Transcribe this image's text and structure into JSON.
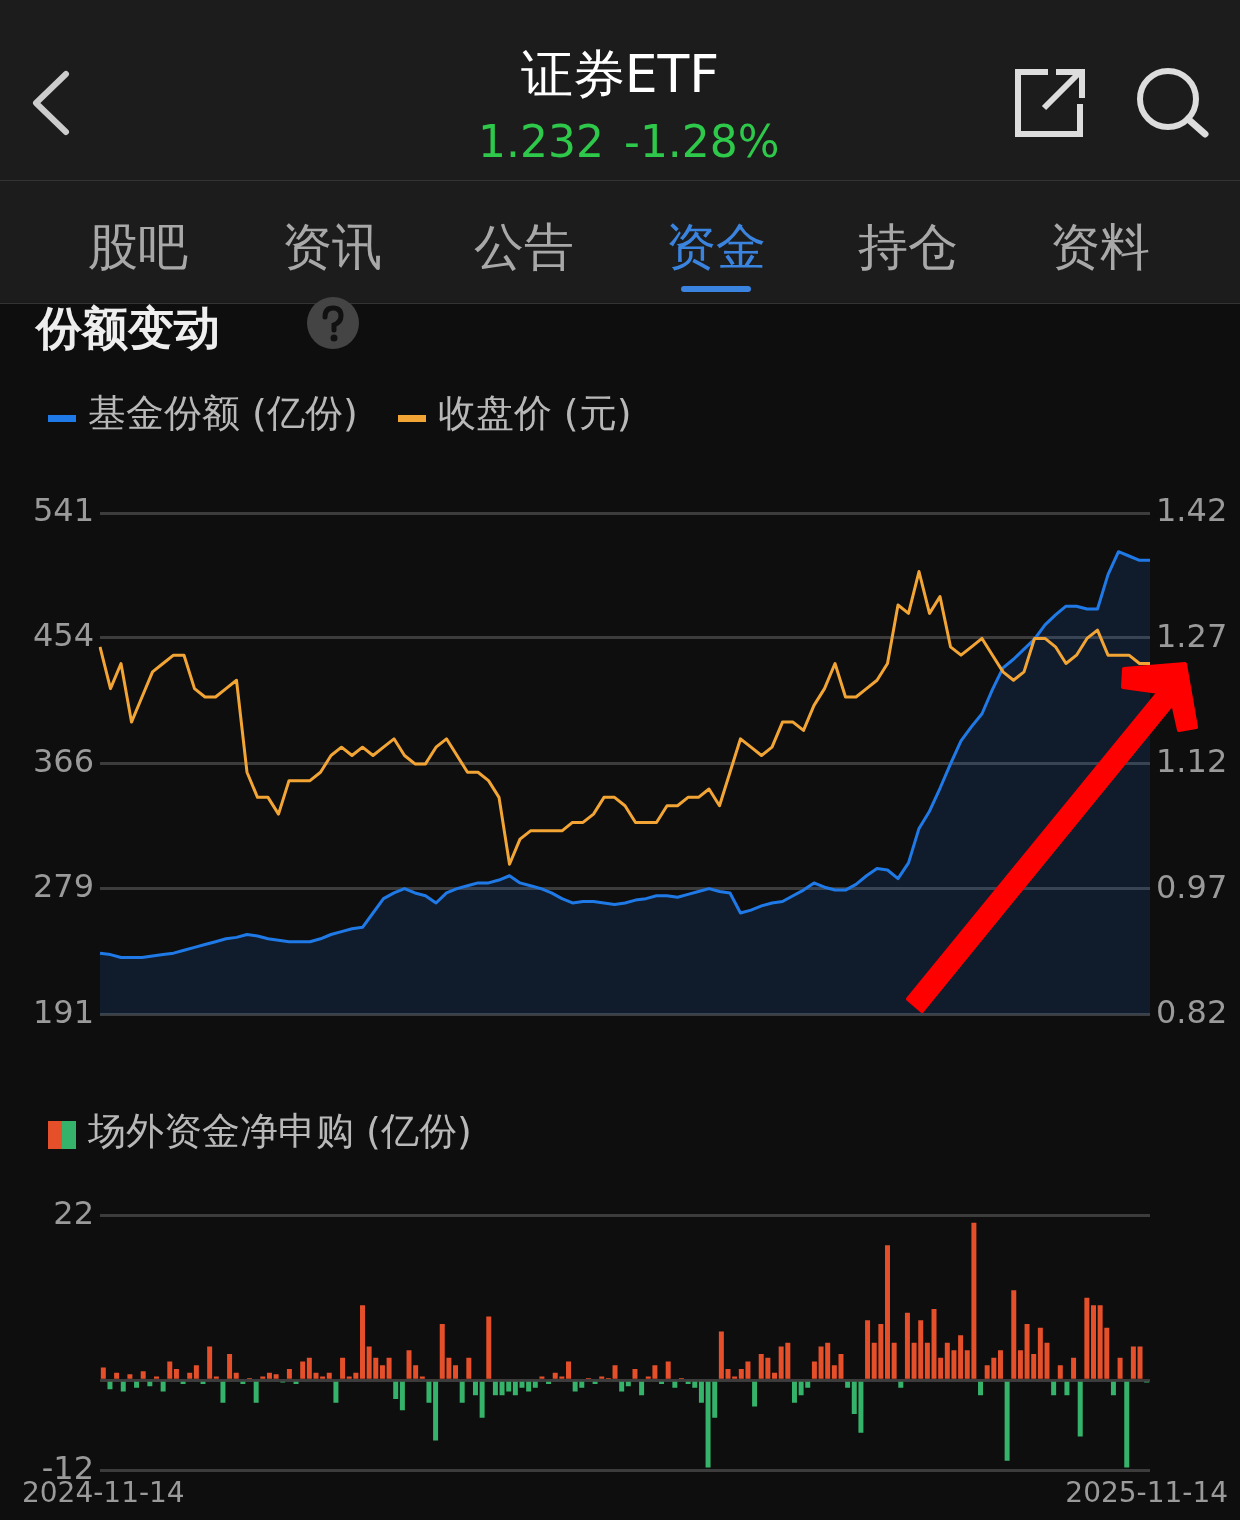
{
  "chart_data": [
    {
      "type": "line",
      "title": "份额变动",
      "annotations": [
        "证券ETF",
        "1.232",
        "-1.28%",
        "股吧",
        "资讯",
        "公告",
        "资金",
        "持仓",
        "资料"
      ],
      "categories": [
        null,
        null,
        null,
        null,
        null,
        null,
        null,
        null,
        null,
        null,
        null,
        null,
        null,
        null,
        null,
        null,
        null,
        null,
        null,
        null,
        null,
        null,
        null,
        null,
        null,
        null,
        null,
        null,
        null,
        null,
        null,
        null,
        null,
        null,
        null,
        null,
        null,
        null,
        null,
        null,
        null,
        null,
        null,
        null,
        null,
        null,
        null,
        null,
        null,
        null,
        null,
        null,
        null,
        null,
        null,
        null,
        null,
        null,
        null,
        null,
        null,
        null,
        null,
        null,
        null,
        null,
        null,
        null,
        null,
        null,
        null,
        null,
        null,
        null,
        null,
        null,
        null,
        null,
        null,
        null,
        null,
        null,
        null,
        null,
        null,
        null,
        null,
        null,
        null,
        null,
        null,
        null,
        null,
        null,
        null,
        null,
        null,
        null,
        null,
        null,
        null
      ],
      "series": [
        {
          "name": "基金份额 (亿份)",
          "type": "area",
          "color": "#1f7ae8",
          "values": [
            234,
            233,
            231,
            231,
            231,
            232,
            233,
            234,
            236,
            238,
            240,
            242,
            244,
            245,
            247,
            246,
            244,
            243,
            242,
            242,
            242,
            244,
            247,
            249,
            251,
            252,
            262,
            272,
            276,
            279,
            276,
            274,
            269,
            276,
            279,
            281,
            283,
            283,
            285,
            288,
            283,
            281,
            279,
            276,
            272,
            269,
            270,
            270,
            269,
            268,
            269,
            271,
            272,
            274,
            274,
            273,
            275,
            277,
            279,
            277,
            276,
            262,
            264,
            267,
            269,
            270,
            274,
            278,
            283,
            280,
            278,
            278,
            282,
            288,
            293,
            292,
            286,
            297,
            321,
            333,
            349,
            366,
            382,
            392,
            401,
            418,
            433,
            439,
            446,
            453,
            463,
            470,
            476,
            476,
            474,
            474,
            498,
            514,
            511,
            508,
            508
          ]
        },
        {
          "name": "收盘价 (元)",
          "type": "line",
          "axis": "y2",
          "color": "#f2a535",
          "values": [
            1.26,
            1.21,
            1.24,
            1.17,
            1.2,
            1.23,
            1.24,
            1.25,
            1.25,
            1.21,
            1.2,
            1.2,
            1.21,
            1.22,
            1.11,
            1.08,
            1.08,
            1.06,
            1.1,
            1.1,
            1.1,
            1.11,
            1.13,
            1.14,
            1.13,
            1.14,
            1.13,
            1.14,
            1.15,
            1.13,
            1.12,
            1.12,
            1.14,
            1.15,
            1.13,
            1.11,
            1.11,
            1.1,
            1.08,
            1.0,
            1.03,
            1.04,
            1.04,
            1.04,
            1.04,
            1.05,
            1.05,
            1.06,
            1.08,
            1.08,
            1.07,
            1.05,
            1.05,
            1.05,
            1.07,
            1.07,
            1.08,
            1.08,
            1.09,
            1.07,
            1.11,
            1.15,
            1.14,
            1.13,
            1.14,
            1.17,
            1.17,
            1.16,
            1.19,
            1.21,
            1.24,
            1.2,
            1.2,
            1.21,
            1.22,
            1.24,
            1.31,
            1.3,
            1.35,
            1.3,
            1.32,
            1.26,
            1.25,
            1.26,
            1.27,
            1.25,
            1.23,
            1.22,
            1.23,
            1.27,
            1.27,
            1.26,
            1.24,
            1.25,
            1.27,
            1.28,
            1.25,
            1.25,
            1.25,
            1.24,
            1.24
          ]
        }
      ],
      "ylim": [
        191,
        541
      ],
      "yticks": [
        191,
        279,
        366,
        454,
        541
      ],
      "y2lim": [
        0.82,
        1.42
      ],
      "y2ticks": [
        0.82,
        0.97,
        1.12,
        1.27,
        1.42
      ],
      "grid": "y",
      "legend": "top left",
      "tick_labels": "y"
    },
    {
      "type": "bar",
      "categories": [
        "2024-11-14",
        null,
        null,
        null,
        null,
        null,
        null,
        null,
        null,
        null,
        null,
        null,
        null,
        null,
        null,
        null,
        null,
        null,
        null,
        null,
        null,
        null,
        null,
        null,
        null,
        null,
        null,
        null,
        null,
        null,
        null,
        null,
        null,
        null,
        null,
        null,
        null,
        null,
        null,
        null,
        null,
        null,
        null,
        null,
        null,
        null,
        null,
        null,
        null,
        null,
        null,
        null,
        null,
        null,
        null,
        null,
        null,
        null,
        null,
        null,
        null,
        null,
        null,
        null,
        null,
        null,
        null,
        null,
        null,
        null,
        null,
        null,
        null,
        null,
        null,
        null,
        null,
        null,
        null,
        null,
        null,
        null,
        null,
        null,
        null,
        null,
        null,
        null,
        null,
        null,
        null,
        null,
        null,
        null,
        null,
        null,
        null,
        null,
        null,
        null,
        null,
        null,
        null,
        null,
        null,
        null,
        null,
        null,
        null,
        null,
        null,
        null,
        null,
        null,
        null,
        null,
        null,
        null,
        null,
        null,
        null,
        null,
        null,
        null,
        null,
        null,
        null,
        null,
        null,
        null,
        null,
        null,
        null,
        null,
        null,
        null,
        null,
        null,
        null,
        null,
        null,
        null,
        null,
        null,
        null,
        null,
        null,
        null,
        null,
        null,
        null,
        null,
        null,
        null,
        null,
        null,
        null,
        "2025-11-14"
      ],
      "series": [
        {
          "name": "场外资金净申购 (亿份)",
          "values": [
            1.7,
            -1.2,
            1,
            -1.5,
            0.8,
            -1,
            1.2,
            -0.8,
            0.5,
            -1.5,
            2.5,
            1.5,
            -0.5,
            1,
            2,
            -0.5,
            4.5,
            0.5,
            -3,
            3.5,
            1,
            -0.5,
            0.3,
            -3,
            0.5,
            1,
            0.8,
            -0.3,
            1.5,
            -0.5,
            2.5,
            3,
            1,
            0.5,
            1,
            -3,
            3,
            0.5,
            1,
            10,
            4.5,
            3,
            2,
            3,
            -2.5,
            -4,
            4,
            2,
            0.5,
            -3,
            -8,
            7.5,
            3,
            2,
            -3,
            3,
            -2,
            -5,
            8.5,
            -2,
            -2,
            -1.5,
            -2,
            -1,
            -1.5,
            -1,
            0.5,
            -0.5,
            1,
            0.5,
            2.5,
            -1.5,
            -1,
            0.3,
            -0.5,
            0.5,
            0.3,
            2,
            -1.5,
            -0.8,
            1.5,
            -2,
            0.5,
            2,
            -0.5,
            2.5,
            -1,
            0.3,
            -0.5,
            -1,
            -3,
            -11.6,
            -5,
            6.5,
            1.5,
            0.5,
            1.5,
            2.5,
            -3.5,
            3.5,
            3,
            1,
            4.5,
            5,
            -3,
            -2,
            -1,
            2.5,
            4.5,
            5,
            2,
            3.5,
            -1,
            -4.5,
            -7,
            8,
            5,
            7.5,
            18,
            5,
            -1,
            9,
            5,
            8,
            5,
            9.5,
            3,
            5,
            4,
            6,
            4,
            21,
            -2,
            2,
            3,
            4,
            -10.7,
            12,
            4,
            7.5,
            3.5,
            7,
            5,
            -2,
            2,
            -2,
            3,
            -7.5,
            11,
            10,
            10,
            7,
            -2,
            3,
            -11.6,
            4.5,
            4.5,
            -0.3
          ],
          "colors": [
            "#e5502b",
            "#36b36b",
            "#e5502b",
            "#36b36b",
            "#e5502b",
            "#36b36b",
            "#e5502b",
            "#36b36b",
            "#e5502b",
            "#36b36b",
            "#e5502b",
            "#e5502b",
            "#36b36b",
            "#e5502b",
            "#e5502b",
            "#36b36b",
            "#e5502b",
            "#e5502b",
            "#36b36b",
            "#e5502b",
            "#e5502b",
            "#36b36b",
            "#e5502b",
            "#36b36b",
            "#e5502b",
            "#e5502b",
            "#e5502b",
            "#36b36b",
            "#e5502b",
            "#36b36b",
            "#e5502b",
            "#e5502b",
            "#e5502b",
            "#e5502b",
            "#e5502b",
            "#36b36b",
            "#e5502b",
            "#e5502b",
            "#e5502b",
            "#e5502b",
            "#e5502b",
            "#e5502b",
            "#e5502b",
            "#e5502b",
            "#36b36b",
            "#36b36b",
            "#e5502b",
            "#e5502b",
            "#e5502b",
            "#36b36b",
            "#36b36b",
            "#e5502b",
            "#e5502b",
            "#e5502b",
            "#36b36b",
            "#e5502b",
            "#36b36b",
            "#36b36b",
            "#e5502b",
            "#36b36b",
            "#36b36b",
            "#36b36b",
            "#36b36b",
            "#36b36b",
            "#36b36b",
            "#36b36b",
            "#e5502b",
            "#36b36b",
            "#e5502b",
            "#e5502b",
            "#e5502b",
            "#36b36b",
            "#36b36b",
            "#e5502b",
            "#36b36b",
            "#e5502b",
            "#e5502b",
            "#e5502b",
            "#36b36b",
            "#36b36b",
            "#e5502b",
            "#36b36b",
            "#e5502b",
            "#e5502b",
            "#36b36b",
            "#e5502b",
            "#36b36b",
            "#e5502b",
            "#36b36b",
            "#36b36b",
            "#36b36b",
            "#36b36b",
            "#36b36b",
            "#e5502b",
            "#e5502b",
            "#e5502b",
            "#e5502b",
            "#e5502b",
            "#36b36b",
            "#e5502b",
            "#e5502b",
            "#e5502b",
            "#e5502b",
            "#e5502b",
            "#36b36b",
            "#36b36b",
            "#36b36b",
            "#e5502b",
            "#e5502b",
            "#e5502b",
            "#e5502b",
            "#e5502b",
            "#36b36b",
            "#36b36b",
            "#36b36b",
            "#e5502b",
            "#e5502b",
            "#e5502b",
            "#e5502b",
            "#e5502b",
            "#36b36b",
            "#e5502b",
            "#e5502b",
            "#e5502b",
            "#e5502b",
            "#e5502b",
            "#e5502b",
            "#e5502b",
            "#e5502b",
            "#e5502b",
            "#e5502b",
            "#e5502b",
            "#36b36b",
            "#e5502b",
            "#e5502b",
            "#e5502b",
            "#36b36b",
            "#e5502b",
            "#e5502b",
            "#e5502b",
            "#e5502b",
            "#e5502b",
            "#e5502b",
            "#36b36b",
            "#e5502b",
            "#36b36b",
            "#e5502b",
            "#36b36b",
            "#e5502b",
            "#e5502b",
            "#e5502b",
            "#e5502b",
            "#36b36b",
            "#e5502b",
            "#36b36b",
            "#e5502b",
            "#e5502b",
            "#36b36b"
          ]
        }
      ],
      "ylim": [
        -12,
        22
      ],
      "yticks": [
        -12,
        {
          "value": 0,
          "label": null
        },
        22
      ],
      "grid": "y",
      "legend": "top left"
    }
  ]
}
